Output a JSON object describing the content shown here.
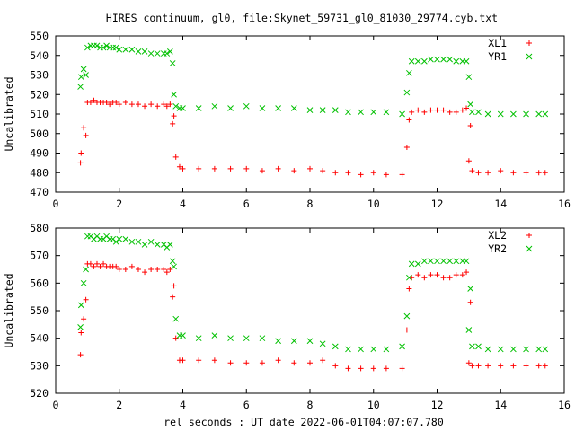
{
  "title": "HIRES continuum, gl0, file:Skynet_59731_gl0_81030_29774.cyb.txt",
  "xlabel": "rel seconds : UT date 2022-06-01T04:07:07.780",
  "chart_data": [
    {
      "type": "scatter",
      "ylabel": "Uncalibrated",
      "xlim": [
        0,
        16
      ],
      "ylim": [
        470,
        550
      ],
      "xticks": [
        0,
        2,
        4,
        6,
        8,
        10,
        12,
        14,
        16
      ],
      "yticks": [
        470,
        480,
        490,
        500,
        510,
        520,
        530,
        540,
        550
      ],
      "legend": "top-right",
      "series": [
        {
          "name": "XL1",
          "marker": "plus",
          "color": "#ff0000",
          "x": [
            0.78,
            0.8,
            0.88,
            0.95,
            1.0,
            1.1,
            1.2,
            1.3,
            1.4,
            1.5,
            1.6,
            1.7,
            1.8,
            1.9,
            2.0,
            2.2,
            2.4,
            2.6,
            2.8,
            3.0,
            3.2,
            3.4,
            3.5,
            3.6,
            3.68,
            3.72,
            3.78,
            3.9,
            4.0,
            4.5,
            5.0,
            5.5,
            6.0,
            6.5,
            7.0,
            7.5,
            8.0,
            8.4,
            8.8,
            9.2,
            9.6,
            10.0,
            10.4,
            10.9,
            11.05,
            11.12,
            11.2,
            11.4,
            11.6,
            11.8,
            12.0,
            12.2,
            12.4,
            12.6,
            12.8,
            12.92,
            13.0,
            13.05,
            13.1,
            13.3,
            13.6,
            14.0,
            14.4,
            14.8,
            15.2,
            15.4
          ],
          "y": [
            485,
            490,
            503,
            499,
            516,
            516,
            517,
            516,
            516,
            516,
            516,
            515,
            516,
            516,
            515,
            516,
            515,
            515,
            514,
            515,
            514,
            515,
            514,
            515,
            505,
            509,
            488,
            483,
            482,
            482,
            482,
            482,
            482,
            481,
            482,
            481,
            482,
            481,
            480,
            480,
            479,
            480,
            479,
            479,
            493,
            507,
            511,
            512,
            511,
            512,
            512,
            512,
            511,
            511,
            512,
            513,
            486,
            504,
            481,
            480,
            480,
            481,
            480,
            480,
            480,
            480
          ]
        },
        {
          "name": "YR1",
          "marker": "cross",
          "color": "#00c000",
          "x": [
            0.78,
            0.8,
            0.88,
            0.95,
            1.0,
            1.1,
            1.2,
            1.3,
            1.4,
            1.5,
            1.6,
            1.7,
            1.8,
            1.9,
            2.0,
            2.2,
            2.4,
            2.6,
            2.8,
            3.0,
            3.2,
            3.4,
            3.5,
            3.6,
            3.68,
            3.72,
            3.78,
            3.9,
            4.0,
            4.5,
            5.0,
            5.5,
            6.0,
            6.5,
            7.0,
            7.5,
            8.0,
            8.4,
            8.8,
            9.2,
            9.6,
            10.0,
            10.4,
            10.9,
            11.05,
            11.12,
            11.2,
            11.4,
            11.6,
            11.8,
            12.0,
            12.2,
            12.4,
            12.6,
            12.8,
            12.92,
            13.0,
            13.05,
            13.1,
            13.3,
            13.6,
            14.0,
            14.4,
            14.8,
            15.2,
            15.4
          ],
          "y": [
            524,
            529,
            533,
            530,
            544,
            545,
            545,
            545,
            544,
            544,
            545,
            544,
            544,
            544,
            543,
            543,
            543,
            542,
            542,
            541,
            541,
            541,
            541,
            542,
            536,
            520,
            514,
            513,
            513,
            513,
            514,
            513,
            514,
            513,
            513,
            513,
            512,
            512,
            512,
            511,
            511,
            511,
            511,
            510,
            521,
            531,
            537,
            537,
            537,
            538,
            538,
            538,
            538,
            537,
            537,
            537,
            529,
            515,
            511,
            511,
            510,
            510,
            510,
            510,
            510,
            510
          ]
        }
      ]
    },
    {
      "type": "scatter",
      "ylabel": "Uncalibrated",
      "xlim": [
        0,
        16
      ],
      "ylim": [
        520,
        580
      ],
      "xticks": [
        0,
        2,
        4,
        6,
        8,
        10,
        12,
        14,
        16
      ],
      "yticks": [
        520,
        530,
        540,
        550,
        560,
        570,
        580
      ],
      "legend": "top-right",
      "series": [
        {
          "name": "XL2",
          "marker": "plus",
          "color": "#ff0000",
          "x": [
            0.78,
            0.8,
            0.88,
            0.95,
            1.0,
            1.1,
            1.2,
            1.3,
            1.4,
            1.5,
            1.6,
            1.7,
            1.8,
            1.9,
            2.0,
            2.2,
            2.4,
            2.6,
            2.8,
            3.0,
            3.2,
            3.4,
            3.5,
            3.6,
            3.68,
            3.72,
            3.78,
            3.9,
            4.0,
            4.5,
            5.0,
            5.5,
            6.0,
            6.5,
            7.0,
            7.5,
            8.0,
            8.4,
            8.8,
            9.2,
            9.6,
            10.0,
            10.4,
            10.9,
            11.05,
            11.12,
            11.2,
            11.4,
            11.6,
            11.8,
            12.0,
            12.2,
            12.4,
            12.6,
            12.8,
            12.92,
            13.0,
            13.05,
            13.1,
            13.3,
            13.6,
            14.0,
            14.4,
            14.8,
            15.2,
            15.4
          ],
          "y": [
            534,
            542,
            547,
            554,
            567,
            567,
            566,
            567,
            566,
            567,
            566,
            566,
            566,
            566,
            565,
            565,
            566,
            565,
            564,
            565,
            565,
            565,
            564,
            565,
            555,
            559,
            540,
            532,
            532,
            532,
            532,
            531,
            531,
            531,
            532,
            531,
            531,
            532,
            530,
            529,
            529,
            529,
            529,
            529,
            543,
            558,
            562,
            563,
            562,
            563,
            563,
            562,
            562,
            563,
            563,
            564,
            531,
            553,
            530,
            530,
            530,
            530,
            530,
            530,
            530,
            530
          ]
        },
        {
          "name": "YR2",
          "marker": "cross",
          "color": "#00c000",
          "x": [
            0.78,
            0.8,
            0.88,
            0.95,
            1.0,
            1.1,
            1.2,
            1.3,
            1.4,
            1.5,
            1.6,
            1.7,
            1.8,
            1.9,
            2.0,
            2.2,
            2.4,
            2.6,
            2.8,
            3.0,
            3.2,
            3.4,
            3.5,
            3.6,
            3.68,
            3.72,
            3.78,
            3.9,
            4.0,
            4.5,
            5.0,
            5.5,
            6.0,
            6.5,
            7.0,
            7.5,
            8.0,
            8.4,
            8.8,
            9.2,
            9.6,
            10.0,
            10.4,
            10.9,
            11.05,
            11.12,
            11.2,
            11.4,
            11.6,
            11.8,
            12.0,
            12.2,
            12.4,
            12.6,
            12.8,
            12.92,
            13.0,
            13.05,
            13.1,
            13.3,
            13.6,
            14.0,
            14.4,
            14.8,
            15.2,
            15.4
          ],
          "y": [
            544,
            552,
            560,
            565,
            577,
            577,
            576,
            577,
            576,
            576,
            577,
            576,
            576,
            575,
            576,
            576,
            575,
            575,
            574,
            575,
            574,
            574,
            573,
            574,
            568,
            566,
            547,
            541,
            541,
            540,
            541,
            540,
            540,
            540,
            539,
            539,
            539,
            538,
            537,
            536,
            536,
            536,
            536,
            537,
            548,
            562,
            567,
            567,
            568,
            568,
            568,
            568,
            568,
            568,
            568,
            568,
            543,
            558,
            537,
            537,
            536,
            536,
            536,
            536,
            536,
            536
          ]
        }
      ]
    }
  ]
}
